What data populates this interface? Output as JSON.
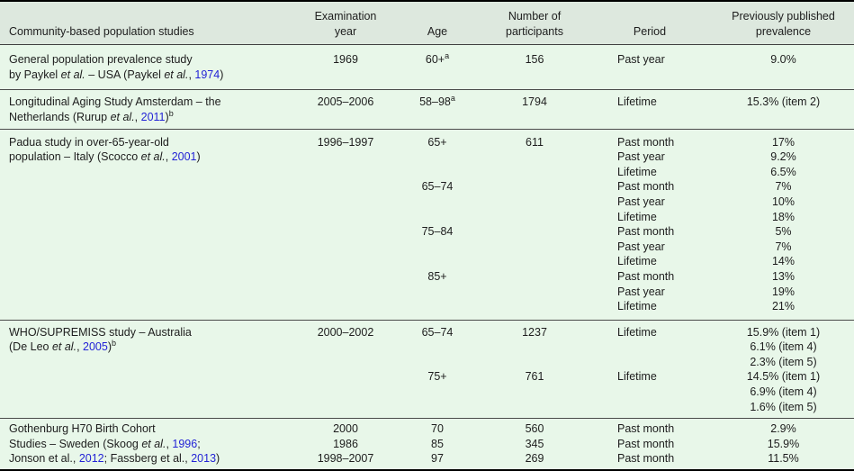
{
  "colors": {
    "table_background": "#e8f7e9",
    "header_background": "#dde8de",
    "rule_dark": "#000000",
    "rule_inner": "#4a4a4a",
    "citation_link": "#2323d6",
    "text": "#1d1d1d"
  },
  "table": {
    "header": {
      "cols": [
        {
          "key": "study",
          "name": "header-studies",
          "lines": [
            "Community-based population studies"
          ]
        },
        {
          "key": "year",
          "name": "header-examination-year",
          "lines": [
            "Examination",
            "year"
          ]
        },
        {
          "key": "age",
          "name": "header-age",
          "lines": [
            "Age"
          ]
        },
        {
          "key": "n",
          "name": "header-participants",
          "lines": [
            "Number of",
            "participants"
          ]
        },
        {
          "key": "period",
          "name": "header-period",
          "lines": [
            "Period"
          ]
        },
        {
          "key": "prev",
          "name": "header-prevalence",
          "lines": [
            "Previously published",
            "prevalence"
          ]
        }
      ]
    },
    "sections": [
      {
        "study": [
          [
            {
              "t": "General population prevalence study"
            }
          ],
          [
            {
              "t": "by Paykel "
            },
            {
              "t": "et al.",
              "s": "i"
            },
            {
              "t": " – USA (Paykel "
            },
            {
              "t": "et al.",
              "s": "i"
            },
            {
              "t": ", "
            },
            {
              "t": "1974",
              "s": "l"
            },
            {
              "t": ")"
            }
          ]
        ],
        "year": [
          "1969"
        ],
        "age": [
          [
            {
              "t": "60+"
            },
            {
              "t": "a",
              "s": "sup"
            }
          ]
        ],
        "n": [
          "156"
        ],
        "period": [
          "Past year"
        ],
        "prev": [
          "9.0%"
        ]
      },
      {
        "study": [
          [
            {
              "t": "Longitudinal Aging Study Amsterdam – the"
            }
          ],
          [
            {
              "t": "Netherlands (Rurup "
            },
            {
              "t": "et al.",
              "s": "i"
            },
            {
              "t": ", "
            },
            {
              "t": "2011",
              "s": "l"
            },
            {
              "t": ")"
            },
            {
              "t": "b",
              "s": "sup"
            }
          ]
        ],
        "year": [
          "2005–2006"
        ],
        "age": [
          [
            {
              "t": "58–98"
            },
            {
              "t": "a",
              "s": "sup"
            }
          ]
        ],
        "n": [
          "1794"
        ],
        "period": [
          "Lifetime"
        ],
        "prev": [
          "15.3% (item 2)"
        ]
      },
      {
        "study": [
          [
            {
              "t": "Padua study in over-65-year-old"
            }
          ],
          [
            {
              "t": "population – Italy (Scocco "
            },
            {
              "t": "et al.",
              "s": "i"
            },
            {
              "t": ", "
            },
            {
              "t": "2001",
              "s": "l"
            },
            {
              "t": ")"
            }
          ]
        ],
        "year": [
          "1996–1997"
        ],
        "age": [
          "65+",
          "",
          "",
          "65–74",
          "",
          "",
          "75–84",
          "",
          "",
          "85+"
        ],
        "n": [
          "611"
        ],
        "period": [
          "Past month",
          "Past year",
          "Lifetime",
          "Past month",
          "Past year",
          "Lifetime",
          "Past month",
          "Past year",
          "Lifetime",
          "Past month",
          "Past year",
          "Lifetime"
        ],
        "prev": [
          "17%",
          "9.2%",
          "6.5%",
          "7%",
          "10%",
          "18%",
          "5%",
          "7%",
          "14%",
          "13%",
          "19%",
          "21%"
        ]
      },
      {
        "study": [
          [
            {
              "t": "WHO/SUPREMISS study – Australia"
            }
          ],
          [
            {
              "t": "(De Leo "
            },
            {
              "t": "et al.",
              "s": "i"
            },
            {
              "t": ", "
            },
            {
              "t": "2005",
              "s": "l"
            },
            {
              "t": ")"
            },
            {
              "t": "b",
              "s": "sup"
            }
          ]
        ],
        "year": [
          "2000–2002"
        ],
        "age": [
          "65–74",
          "",
          "",
          "75+"
        ],
        "n": [
          "1237",
          "",
          "",
          "761"
        ],
        "period": [
          "Lifetime",
          "",
          "",
          "Lifetime"
        ],
        "prev": [
          "15.9% (item 1)",
          "6.1% (item 4)",
          "2.3% (item 5)",
          "14.5% (item 1)",
          "6.9% (item 4)",
          "1.6% (item 5)"
        ]
      },
      {
        "study": [
          [
            {
              "t": "Gothenburg H70 Birth Cohort"
            }
          ],
          [
            {
              "t": "Studies – Sweden (Skoog "
            },
            {
              "t": "et al.",
              "s": "i"
            },
            {
              "t": ", "
            },
            {
              "t": "1996",
              "s": "l"
            },
            {
              "t": ";"
            }
          ],
          [
            {
              "t": "Jonson et al., "
            },
            {
              "t": "2012",
              "s": "l"
            },
            {
              "t": "; Fassberg et al., "
            },
            {
              "t": "2013",
              "s": "l"
            },
            {
              "t": ")"
            }
          ]
        ],
        "year": [
          "2000",
          "1986",
          "1998–2007"
        ],
        "age": [
          "70",
          "85",
          "97"
        ],
        "n": [
          "560",
          "345",
          "269"
        ],
        "period": [
          "Past month",
          "Past month",
          "Past month"
        ],
        "prev": [
          "2.9%",
          "15.9%",
          "11.5%"
        ]
      }
    ]
  }
}
